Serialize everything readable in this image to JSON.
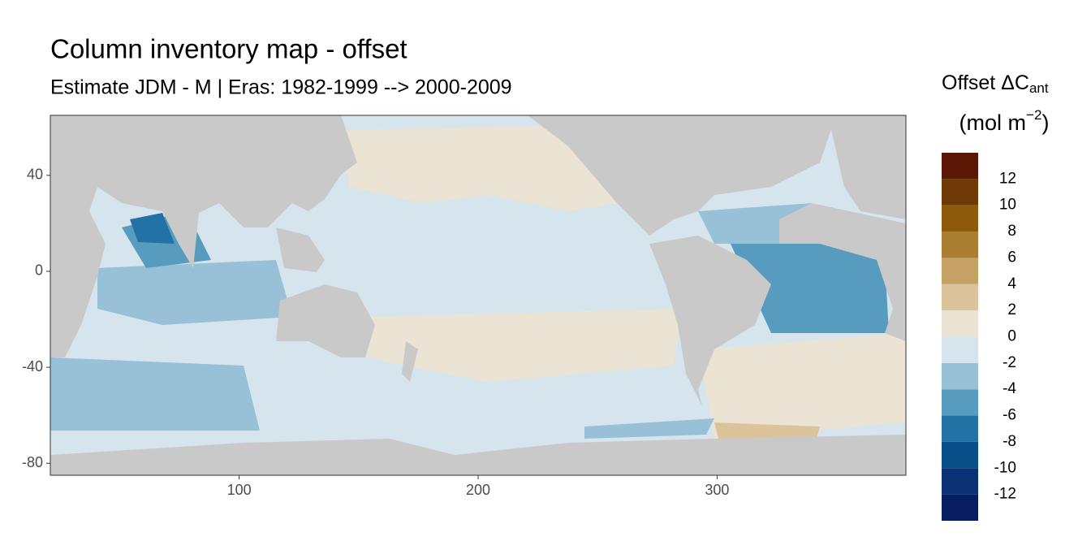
{
  "chart_data": {
    "type": "map",
    "title": "Column inventory map - offset",
    "subtitle": "Estimate JDM - M | Eras: 1982-1999 --> 2000-2009",
    "xlim": [
      21,
      379
    ],
    "ylim": [
      -85,
      65
    ],
    "xticks": [
      100,
      200,
      300
    ],
    "yticks": [
      40,
      0,
      -40,
      -80
    ],
    "legend": {
      "title": {
        "main": "Offset ΔC",
        "subscript": "ant",
        "unit": "(mol m",
        "superscript": "−2",
        "unit_end": ")"
      },
      "breaks": [
        -14,
        -12,
        -10,
        -8,
        -6,
        -4,
        -2,
        0,
        2,
        4,
        6,
        8,
        10,
        12,
        14
      ],
      "labels": [
        -12,
        -10,
        -8,
        -6,
        -4,
        -2,
        0,
        2,
        4,
        6,
        8,
        10,
        12
      ],
      "colors": [
        "#071e62",
        "#0b3277",
        "#08508a",
        "#2372a6",
        "#579bbf",
        "#98c1d8",
        "#d6e4ed",
        "#ebe3d3",
        "#dbc49b",
        "#c4a266",
        "#a97e31",
        "#8c5a0a",
        "#703a06",
        "#5b1703"
      ]
    }
  }
}
